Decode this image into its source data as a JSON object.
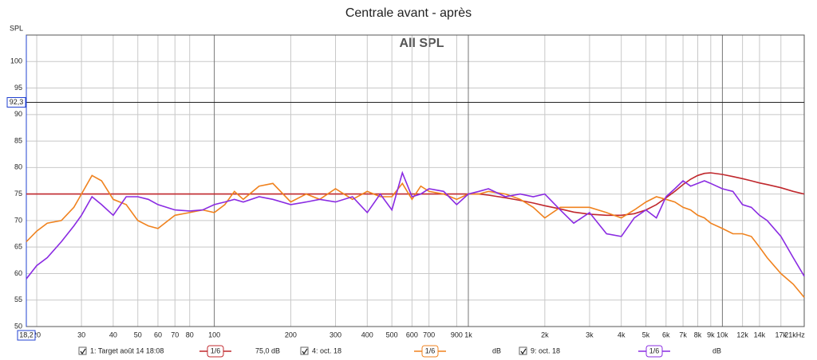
{
  "chart_data": {
    "type": "line",
    "title": "Centrale avant - après",
    "annotation": "All SPL",
    "ylabel": "SPL",
    "xscale": "log",
    "grid": true,
    "xlim": [
      18.2,
      21000
    ],
    "ylim": [
      50,
      105
    ],
    "yticks": [
      50,
      55,
      60,
      65,
      70,
      75,
      80,
      85,
      90,
      95,
      100
    ],
    "xticks": [
      20,
      30,
      40,
      50,
      60,
      70,
      80,
      100,
      200,
      300,
      400,
      500,
      600,
      700,
      900,
      {
        "value": 1000,
        "label": "1k"
      },
      {
        "value": 2000,
        "label": "2k"
      },
      {
        "value": 3000,
        "label": "3k"
      },
      {
        "value": 4000,
        "label": "4k"
      },
      {
        "value": 5000,
        "label": "5k"
      },
      {
        "value": 6000,
        "label": "6k"
      },
      {
        "value": 7000,
        "label": "7k"
      },
      {
        "value": 8000,
        "label": "8k"
      },
      {
        "value": 9000,
        "label": "9k"
      },
      {
        "value": 10000,
        "label": "10k"
      },
      {
        "value": 12000,
        "label": "12k"
      },
      {
        "value": 14000,
        "label": "14k"
      },
      {
        "value": 17000,
        "label": "17k"
      },
      {
        "value": 21000,
        "label": "21kHz"
      }
    ],
    "cursor_y": {
      "value": 92.3,
      "label": "92,3"
    },
    "cursor_x": {
      "value": 18.2,
      "label": "18,2"
    },
    "x": [
      18.2,
      20,
      22,
      25,
      28,
      30,
      33,
      36,
      40,
      45,
      50,
      55,
      60,
      70,
      80,
      90,
      100,
      110,
      120,
      130,
      150,
      170,
      200,
      230,
      260,
      300,
      350,
      400,
      450,
      500,
      550,
      600,
      650,
      700,
      800,
      900,
      1000,
      1100,
      1200,
      1400,
      1600,
      1800,
      2000,
      2300,
      2600,
      3000,
      3500,
      4000,
      4500,
      5000,
      5500,
      6000,
      6500,
      7000,
      7500,
      8000,
      8500,
      9000,
      10000,
      11000,
      12000,
      13000,
      14000,
      15000,
      17000,
      19000,
      21000
    ],
    "series": [
      {
        "name": "1: Target août 14 18:08",
        "color": "#c0282d",
        "smoothing": "1/6",
        "level": "75,0 dB",
        "values": [
          75,
          75,
          75,
          75,
          75,
          75,
          75,
          75,
          75,
          75,
          75,
          75,
          75,
          75,
          75,
          75,
          75,
          75,
          75,
          75,
          75,
          75,
          75,
          75,
          75,
          75,
          75,
          75,
          75,
          75,
          75,
          75,
          75,
          75,
          75,
          75,
          75,
          75,
          74.8,
          74.3,
          73.8,
          73.3,
          72.8,
          72.2,
          71.6,
          71.2,
          71,
          71,
          71.3,
          72,
          73,
          74.3,
          75.5,
          76.8,
          77.8,
          78.5,
          78.9,
          79,
          78.7,
          78.3,
          77.9,
          77.5,
          77.1,
          76.8,
          76.2,
          75.5,
          75
        ]
      },
      {
        "name": "4: oct. 18",
        "color": "#f0821e",
        "smoothing": "1/6",
        "level": "dB",
        "values": [
          66,
          68,
          69.5,
          70,
          72.5,
          75,
          78.5,
          77.5,
          74,
          73,
          70,
          69,
          68.5,
          71,
          71.5,
          72,
          71.5,
          73,
          75.5,
          74,
          76.5,
          77,
          73.5,
          75,
          74,
          76,
          74,
          75.5,
          74.5,
          74.5,
          77,
          74,
          76.5,
          75.5,
          75,
          74,
          75,
          75,
          75.5,
          75,
          74,
          72.5,
          70.5,
          72.5,
          72.5,
          72.5,
          71.5,
          70.5,
          72,
          73.5,
          74.5,
          74,
          73.5,
          72.5,
          72,
          71,
          70.5,
          69.5,
          68.5,
          67.5,
          67.5,
          67,
          65,
          63,
          60,
          58,
          55.5
        ]
      },
      {
        "name": "9: oct. 18",
        "color": "#8a2be2",
        "smoothing": "1/6",
        "level": "dB",
        "values": [
          59,
          61.5,
          63,
          66,
          69,
          71,
          74.5,
          73,
          71,
          74.5,
          74.5,
          74,
          73,
          72,
          71.8,
          72,
          73,
          73.5,
          74,
          73.5,
          74.5,
          74,
          73,
          73.5,
          74,
          73.5,
          74.5,
          71.5,
          75,
          72,
          79,
          74.5,
          75,
          76,
          75.5,
          73,
          75,
          75.5,
          76,
          74.5,
          75,
          74.5,
          75,
          72,
          69.5,
          71.5,
          67.5,
          67,
          70.5,
          72,
          70.5,
          74.5,
          76,
          77.5,
          76.5,
          77,
          77.5,
          77,
          76,
          75.5,
          73,
          72.5,
          71,
          70,
          67,
          63,
          59.5
        ]
      }
    ]
  }
}
